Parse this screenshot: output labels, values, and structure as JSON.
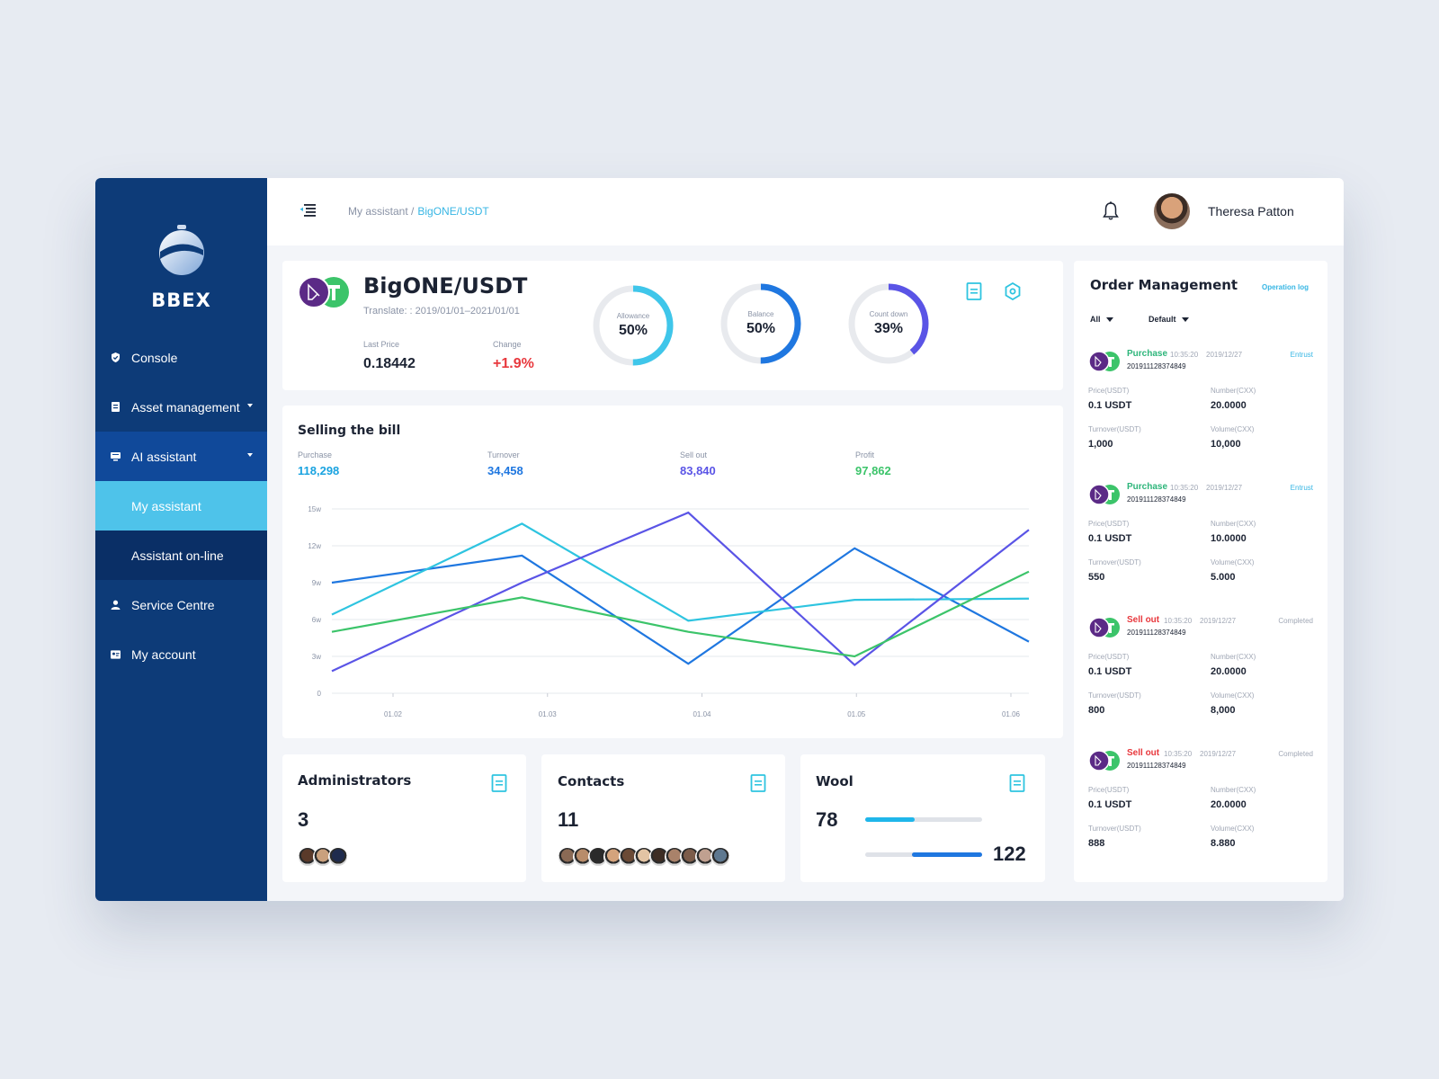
{
  "app": {
    "brand": "BBEX"
  },
  "sidebar": {
    "items": [
      {
        "label": "Console",
        "icon": "shield-icon"
      },
      {
        "label": "Asset management",
        "icon": "document-icon"
      },
      {
        "label": "AI assistant",
        "icon": "monitor-icon"
      },
      {
        "label": "My assistant"
      },
      {
        "label": "Assistant on-line"
      },
      {
        "label": "Service Centre",
        "icon": "user-icon"
      },
      {
        "label": "My account",
        "icon": "id-card-icon"
      }
    ]
  },
  "header": {
    "breadcrumb_parent": "My assistant /",
    "breadcrumb_current": "BigONE/USDT",
    "user_name": "Theresa Patton"
  },
  "pair_panel": {
    "pair": "BigONE/USDT",
    "translate": "Translate: : 2019/01/01–2021/01/01",
    "last_price_label": "Last Price",
    "last_price": "0.18442",
    "change_label": "Change",
    "change": "+1.9%",
    "rings": [
      {
        "label": "Allowance",
        "value": "50%",
        "fraction": 0.5,
        "color": "#3fc6ea"
      },
      {
        "label": "Balance",
        "value": "50%",
        "fraction": 0.5,
        "color": "#1f77e0"
      },
      {
        "label": "Count down",
        "value": "39%",
        "fraction": 0.39,
        "color": "#5a54e6"
      }
    ]
  },
  "bill_panel": {
    "title": "Selling the bill",
    "stats": [
      {
        "label": "Purchase",
        "value": "118,298",
        "color": "#1aa3e0"
      },
      {
        "label": "Turnover",
        "value": "34,458",
        "color": "#1f77e0"
      },
      {
        "label": "Sell out",
        "value": "83,840",
        "color": "#5a54e6"
      },
      {
        "label": "Profit",
        "value": "97,862",
        "color": "#3cc46a"
      }
    ]
  },
  "chart_data": {
    "type": "line",
    "x": [
      "01.02",
      "01.03",
      "01.04",
      "01.05",
      "01.06"
    ],
    "y_ticks": [
      "0",
      "3w",
      "6w",
      "9w",
      "12w",
      "15w"
    ],
    "ylim": [
      0,
      15
    ],
    "series": [
      {
        "color": "#1f77e0",
        "points": [
          [
            0,
            9
          ],
          [
            1.2,
            11.2
          ],
          [
            2.25,
            2.4
          ],
          [
            3.3,
            11.8
          ],
          [
            4.4,
            4.2
          ]
        ]
      },
      {
        "color": "#2ec4e0",
        "points": [
          [
            0,
            6.4
          ],
          [
            1.2,
            13.8
          ],
          [
            2.25,
            5.9
          ],
          [
            3.3,
            7.6
          ],
          [
            4.4,
            7.7
          ]
        ]
      },
      {
        "color": "#5a54e6",
        "points": [
          [
            0,
            1.8
          ],
          [
            1.2,
            9.0
          ],
          [
            2.25,
            14.7
          ],
          [
            3.3,
            2.3
          ],
          [
            4.4,
            13.3
          ]
        ]
      },
      {
        "color": "#3cc46a",
        "points": [
          [
            0,
            5.0
          ],
          [
            1.2,
            7.8
          ],
          [
            2.25,
            5.0
          ],
          [
            3.3,
            3.0
          ],
          [
            4.4,
            9.9
          ]
        ]
      }
    ]
  },
  "cards": [
    {
      "title": "Administrators",
      "value": "3",
      "faces": [
        "#5a3a2a",
        "#c9a07d",
        "#1f2b4d"
      ]
    },
    {
      "title": "Contacts",
      "value": "11",
      "faces": [
        "#8a6a55",
        "#b88c6a",
        "#2a2a2a",
        "#d4a37c",
        "#6b4a36",
        "#e3c4a4",
        "#3d2d24",
        "#a9826a",
        "#7c5c4a",
        "#c0a090",
        "#5e7890"
      ]
    },
    {
      "title": "Wool",
      "value": "78",
      "value2": "122",
      "bar1": 0.42,
      "bar2": 0.6
    }
  ],
  "orders": {
    "title": "Order Management",
    "operation_log": "Operation log",
    "filter_all": "All",
    "filter_default": "Default",
    "items": [
      {
        "type": "Purchase",
        "type_color": "#2db57a",
        "time": "10:35:20",
        "date": "2019/12/27",
        "status": "Entrust",
        "status_color": "#37b6e4",
        "id": "201911128374849",
        "price_label": "Price(USDT)",
        "price": "0.1 USDT",
        "number_label": "Number(CXX)",
        "number": "20.0000",
        "turnover_label": "Turnover(USDT)",
        "turnover": "1,000",
        "volume_label": "Volume(CXX)",
        "volume": "10,000"
      },
      {
        "type": "Purchase",
        "type_color": "#2db57a",
        "time": "10:35:20",
        "date": "2019/12/27",
        "status": "Entrust",
        "status_color": "#37b6e4",
        "id": "201911128374849",
        "price_label": "Price(USDT)",
        "price": "0.1 USDT",
        "number_label": "Number(CXX)",
        "number": "10.0000",
        "turnover_label": "Turnover(USDT)",
        "turnover": "550",
        "volume_label": "Volume(CXX)",
        "volume": "5.000"
      },
      {
        "type": "Sell out",
        "type_color": "#e8383d",
        "time": "10:35:20",
        "date": "2019/12/27",
        "status": "Completed",
        "status_color": "#a0a7b5",
        "id": "201911128374849",
        "price_label": "Price(USDT)",
        "price": "0.1 USDT",
        "number_label": "Number(CXX)",
        "number": "20.0000",
        "turnover_label": "Turnover(USDT)",
        "turnover": "800",
        "volume_label": "Volume(CXX)",
        "volume": "8,000"
      },
      {
        "type": "Sell out",
        "type_color": "#e8383d",
        "time": "10:35:20",
        "date": "2019/12/27",
        "status": "Completed",
        "status_color": "#a0a7b5",
        "id": "201911128374849",
        "price_label": "Price(USDT)",
        "price": "0.1 USDT",
        "number_label": "Number(CXX)",
        "number": "20.0000",
        "turnover_label": "Turnover(USDT)",
        "turnover": "888",
        "volume_label": "Volume(CXX)",
        "volume": "8.880"
      }
    ]
  }
}
